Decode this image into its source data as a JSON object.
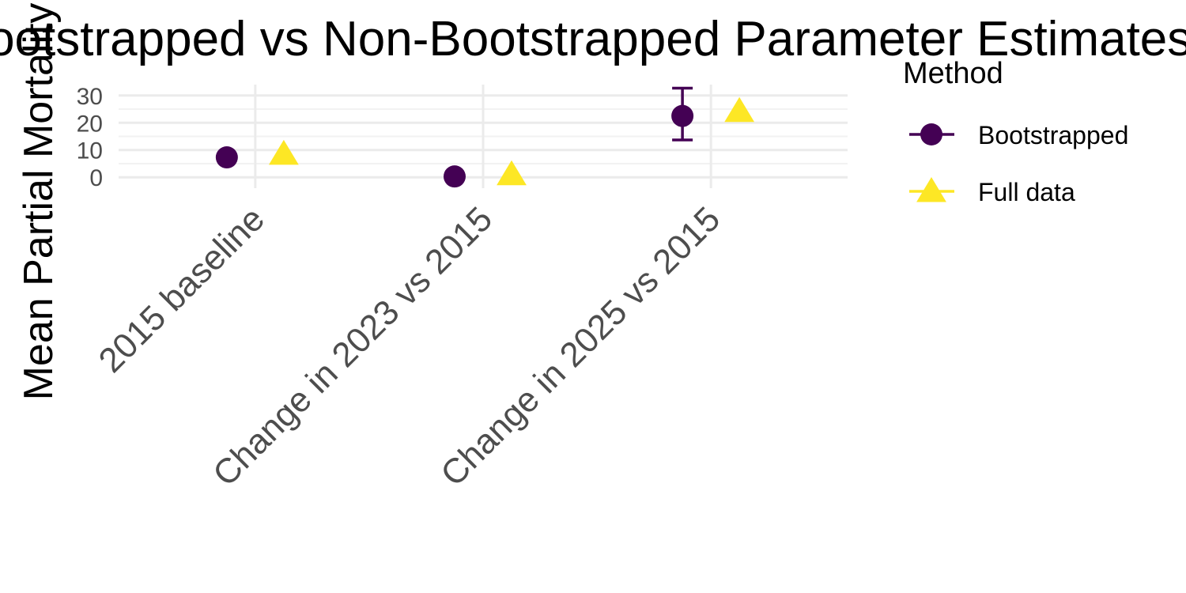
{
  "chart_data": {
    "type": "scatter",
    "title": "Bootstrapped vs Non-Bootstrapped Parameter Estimates",
    "xlabel": "",
    "ylabel": "Mean Partial Mortality",
    "categories": [
      "2015 baseline",
      "Change in 2023 vs 2015",
      "Change in 2025 vs 2015"
    ],
    "ylim": [
      -4,
      34
    ],
    "yticks": [
      0,
      10,
      20,
      30
    ],
    "grid": true,
    "legend": {
      "title": "Method",
      "placement": "right"
    },
    "series": [
      {
        "name": "Bootstrapped",
        "marker": "circle",
        "color": "#440154",
        "values": [
          7.3,
          0.3,
          22.5
        ],
        "error_low": [
          null,
          null,
          13.7
        ],
        "error_high": [
          null,
          null,
          32.7
        ]
      },
      {
        "name": "Full data",
        "marker": "triangle",
        "color": "#FDE725",
        "values": [
          8.5,
          1.0,
          24.2
        ],
        "error_low": [
          null,
          null,
          null
        ],
        "error_high": [
          null,
          null,
          null
        ]
      }
    ]
  }
}
